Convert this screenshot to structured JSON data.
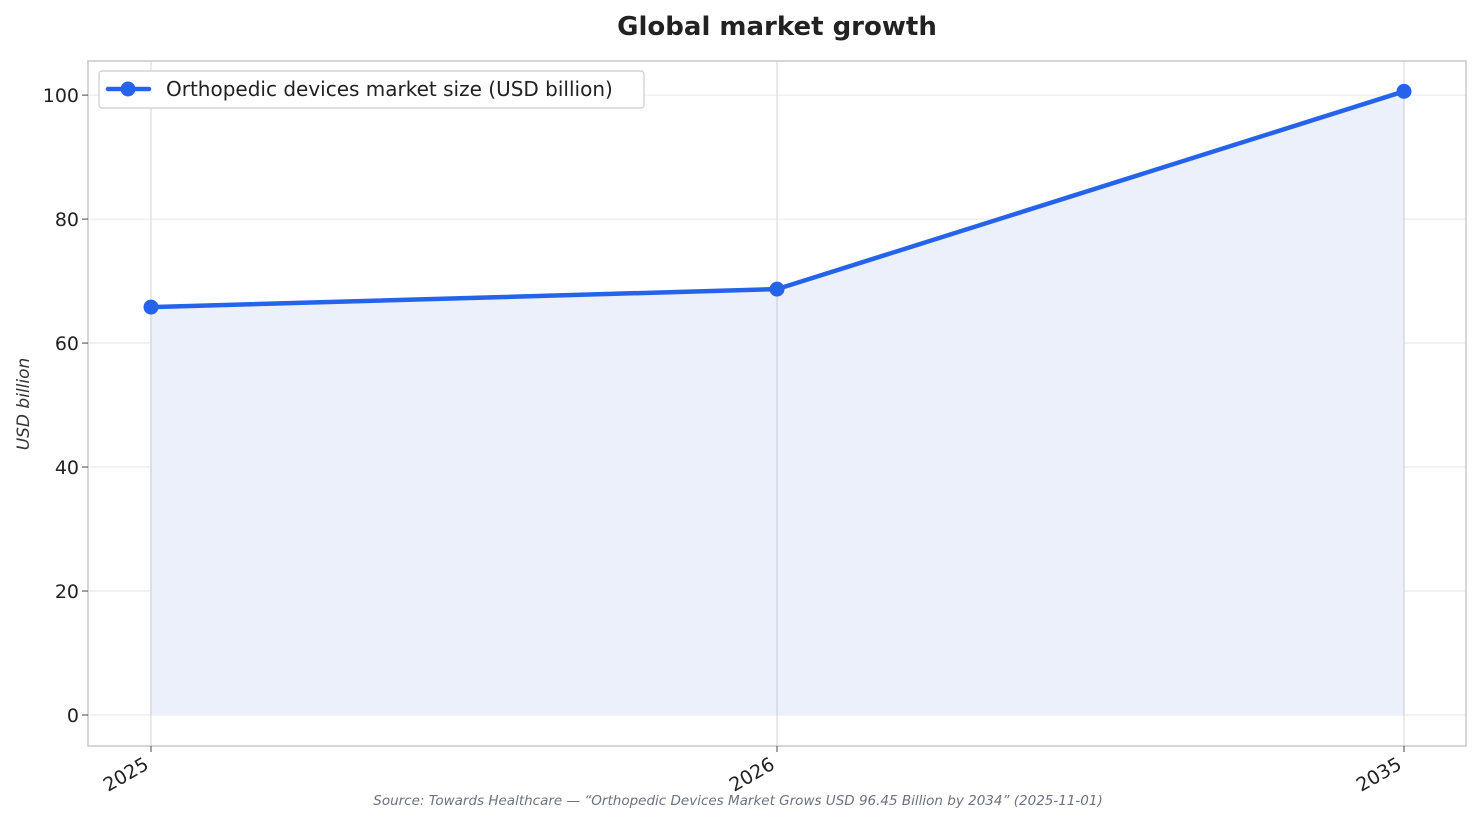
{
  "chart_data": {
    "type": "line",
    "title": "Global market growth",
    "xlabel": "",
    "ylabel": "USD billion",
    "categories": [
      "2025",
      "2026",
      "2035"
    ],
    "series": [
      {
        "name": "Orthopedic devices market size (USD billion)",
        "values": [
          65.8,
          68.7,
          100.6
        ]
      }
    ],
    "ylim": [
      -5,
      105.5
    ],
    "yticks": [
      0,
      20,
      40,
      60,
      80,
      100
    ],
    "grid": true,
    "legend": "top-left",
    "area_fill": true,
    "source": "Source: Towards Healthcare — “Orthopedic Devices Market Grows USD 96.45 Billion by 2034” (2025-11-01)"
  },
  "colors": {
    "line": "#2563eb",
    "fill": "#ebf0fb",
    "grid": "#e6e6e6",
    "axes": "#c8c8c8"
  }
}
